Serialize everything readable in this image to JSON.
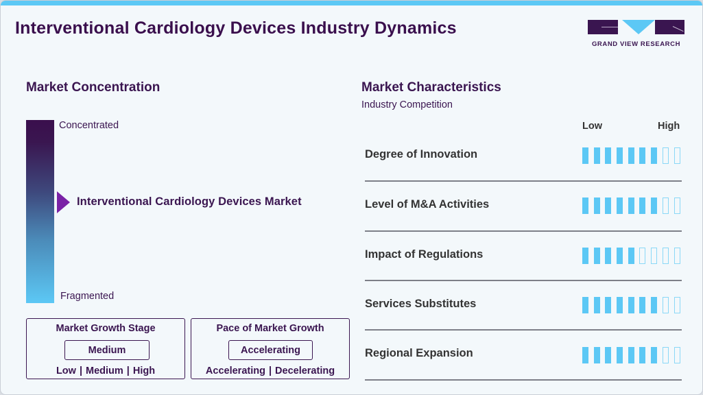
{
  "header": {
    "title": "Interventional Cardiology Devices Industry Dynamics",
    "logo_text": "GRAND VIEW RESEARCH"
  },
  "colors": {
    "accent": "#5cc8f5",
    "primary": "#3a1550",
    "marker": "#7a22a6",
    "text_dark": "#333333",
    "background": "#f3f8fb"
  },
  "market_concentration": {
    "title": "Market Concentration",
    "top_label": "Concentrated",
    "bottom_label": "Fragmented",
    "marker_label": "Interventional Cardiology Devices Market",
    "marker_position_pct": 44
  },
  "growth_stage": {
    "title": "Market Growth Stage",
    "value": "Medium",
    "options": [
      "Low",
      "Medium",
      "High"
    ]
  },
  "growth_pace": {
    "title": "Pace of Market Growth",
    "value": "Accelerating",
    "options": [
      "Accelerating",
      "Decelerating"
    ]
  },
  "market_characteristics": {
    "title": "Market Characteristics",
    "subtitle": "Industry Competition",
    "scale_low": "Low",
    "scale_high": "High",
    "max_score": 9,
    "rows": [
      {
        "label": "Degree of Innovation",
        "score": 7
      },
      {
        "label": "Level of M&A Activities",
        "score": 7
      },
      {
        "label": "Impact of Regulations",
        "score": 5
      },
      {
        "label": "Services Substitutes",
        "score": 7
      },
      {
        "label": "Regional Expansion",
        "score": 7
      }
    ]
  },
  "chart_data": {
    "type": "table",
    "title": "Interventional Cardiology Devices Industry Dynamics",
    "categories": [
      "Degree of Innovation",
      "Level of M&A Activities",
      "Impact of Regulations",
      "Services Substitutes",
      "Regional Expansion"
    ],
    "values": [
      7,
      7,
      5,
      7,
      7
    ],
    "scale": [
      0,
      9
    ],
    "xlabel": "Low → High",
    "market_concentration": "Between Concentrated and Fragmented (slightly toward Concentrated)",
    "market_growth_stage": "Medium",
    "pace_of_market_growth": "Accelerating"
  }
}
